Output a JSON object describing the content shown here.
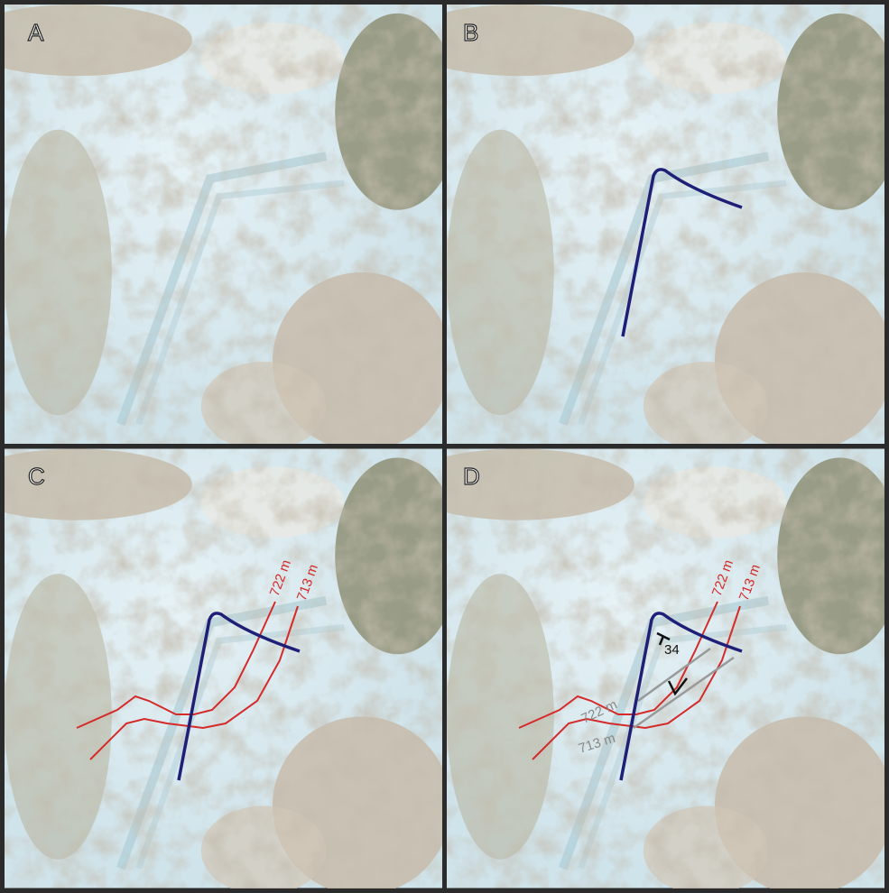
{
  "panels": [
    {
      "label": "A"
    },
    {
      "label": "B"
    },
    {
      "label": "C",
      "contours": [
        {
          "label": "722 m"
        },
        {
          "label": "713 m"
        }
      ]
    },
    {
      "label": "D",
      "contours": [
        {
          "label": "722 m"
        },
        {
          "label": "713 m"
        }
      ],
      "dip": "34",
      "projected": [
        {
          "label": "722 m"
        },
        {
          "label": "713 m"
        }
      ]
    }
  ]
}
